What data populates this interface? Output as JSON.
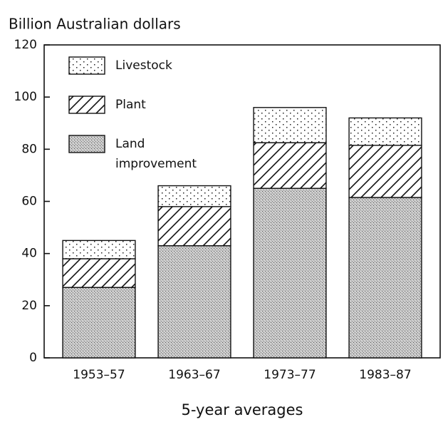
{
  "chart_data": {
    "type": "stacked_bar",
    "ylabel": "Billion Australian dollars",
    "xlabel": "5-year averages",
    "categories": [
      "1953–57",
      "1963–67",
      "1973–77",
      "1983–87"
    ],
    "series": [
      {
        "name": "Land improvement",
        "values": [
          27,
          43,
          65,
          61.5
        ]
      },
      {
        "name": "Plant",
        "values": [
          11,
          15,
          17.5,
          20
        ]
      },
      {
        "name": "Livestock",
        "values": [
          7,
          8,
          13.5,
          10.5
        ]
      }
    ],
    "ylim": [
      0,
      120
    ],
    "yticks": [
      0,
      20,
      40,
      60,
      80,
      100,
      120
    ]
  }
}
